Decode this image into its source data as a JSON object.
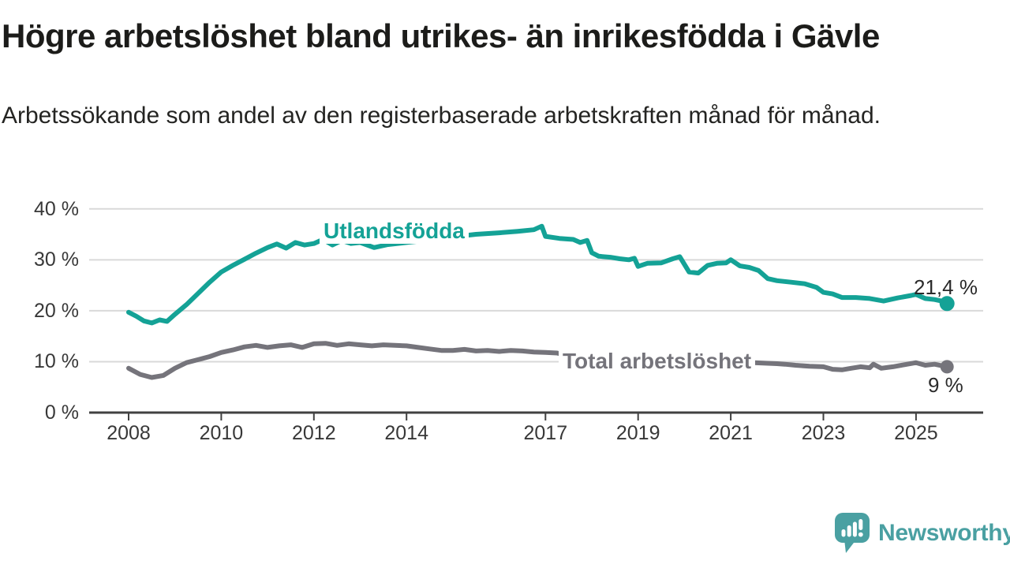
{
  "header": {
    "title": "Högre arbetslöshet bland utrikes- än inrikesfödda i Gävle",
    "subtitle": "Arbetssökande som andel av den registerbaserade arbetskraften månad för månad."
  },
  "branding": {
    "logo_text": "Newsworthy",
    "logo_icon": "speech-bubble-bar-chart-icon",
    "logo_color": "#4aa0a2"
  },
  "colors": {
    "foreign_born_line": "#14a296",
    "total_line": "#75747b",
    "gridline": "#d9d9d9",
    "axis": "#414141",
    "text": "#1c1c1a"
  },
  "chart_data": {
    "type": "line",
    "title": "Högre arbetslöshet bland utrikes- än inrikesfödda i Gävle",
    "subtitle": "Arbetssökande som andel av den registerbaserade arbetskraften månad för månad.",
    "xlabel": "",
    "ylabel": "",
    "grid": true,
    "legend_position": "inline-labels",
    "xlim": [
      2007.2,
      2026.4
    ],
    "ylim": [
      0,
      42
    ],
    "x_ticks": [
      2008,
      2010,
      2012,
      2014,
      2017,
      2019,
      2021,
      2023,
      2025
    ],
    "y_ticks": [
      {
        "value": 0,
        "label": "0 %"
      },
      {
        "value": 10,
        "label": "10 %"
      },
      {
        "value": 20,
        "label": "20 %"
      },
      {
        "value": 30,
        "label": "30 %"
      },
      {
        "value": 40,
        "label": "40 %"
      }
    ],
    "series": [
      {
        "name": "Utlandsfödda",
        "color": "#14a296",
        "end_label": "21,4 %",
        "end_value": 21.4,
        "points": [
          [
            2008.0,
            19.7
          ],
          [
            2008.17,
            18.9
          ],
          [
            2008.33,
            18.0
          ],
          [
            2008.5,
            17.6
          ],
          [
            2008.67,
            18.2
          ],
          [
            2008.83,
            17.9
          ],
          [
            2009.0,
            19.3
          ],
          [
            2009.25,
            21.2
          ],
          [
            2009.5,
            23.4
          ],
          [
            2009.75,
            25.6
          ],
          [
            2010.0,
            27.6
          ],
          [
            2010.25,
            28.9
          ],
          [
            2010.5,
            30.1
          ],
          [
            2010.75,
            31.3
          ],
          [
            2011.0,
            32.4
          ],
          [
            2011.2,
            33.1
          ],
          [
            2011.4,
            32.3
          ],
          [
            2011.6,
            33.4
          ],
          [
            2011.8,
            32.9
          ],
          [
            2012.0,
            33.2
          ],
          [
            2012.2,
            34.0
          ],
          [
            2012.4,
            32.9
          ],
          [
            2012.6,
            33.8
          ],
          [
            2012.8,
            33.2
          ],
          [
            2013.0,
            33.4
          ],
          [
            2013.3,
            32.4
          ],
          [
            2013.6,
            33.0
          ],
          [
            2014.0,
            33.4
          ],
          [
            2014.5,
            33.9
          ],
          [
            2015.0,
            34.5
          ],
          [
            2015.5,
            35.0
          ],
          [
            2016.0,
            35.3
          ],
          [
            2016.4,
            35.6
          ],
          [
            2016.75,
            35.9
          ],
          [
            2016.92,
            36.6
          ],
          [
            2017.0,
            34.6
          ],
          [
            2017.3,
            34.2
          ],
          [
            2017.6,
            34.0
          ],
          [
            2017.75,
            33.4
          ],
          [
            2017.9,
            33.8
          ],
          [
            2018.0,
            31.4
          ],
          [
            2018.15,
            30.7
          ],
          [
            2018.4,
            30.5
          ],
          [
            2018.6,
            30.2
          ],
          [
            2018.8,
            30.0
          ],
          [
            2018.92,
            30.3
          ],
          [
            2019.0,
            28.7
          ],
          [
            2019.2,
            29.3
          ],
          [
            2019.5,
            29.4
          ],
          [
            2019.75,
            30.2
          ],
          [
            2019.9,
            30.6
          ],
          [
            2020.1,
            27.6
          ],
          [
            2020.3,
            27.4
          ],
          [
            2020.5,
            28.9
          ],
          [
            2020.7,
            29.3
          ],
          [
            2020.9,
            29.4
          ],
          [
            2021.0,
            30.0
          ],
          [
            2021.2,
            28.8
          ],
          [
            2021.4,
            28.5
          ],
          [
            2021.6,
            27.9
          ],
          [
            2021.8,
            26.3
          ],
          [
            2022.0,
            25.9
          ],
          [
            2022.3,
            25.6
          ],
          [
            2022.6,
            25.3
          ],
          [
            2022.85,
            24.6
          ],
          [
            2023.0,
            23.6
          ],
          [
            2023.2,
            23.3
          ],
          [
            2023.4,
            22.6
          ],
          [
            2023.7,
            22.6
          ],
          [
            2024.0,
            22.4
          ],
          [
            2024.3,
            21.9
          ],
          [
            2024.6,
            22.5
          ],
          [
            2024.9,
            23.0
          ],
          [
            2025.0,
            23.2
          ],
          [
            2025.2,
            22.4
          ],
          [
            2025.4,
            22.2
          ],
          [
            2025.55,
            21.9
          ],
          [
            2025.67,
            21.4
          ]
        ]
      },
      {
        "name": "Total arbetslöshet",
        "color": "#75747b",
        "end_label": "9 %",
        "end_value": 9.0,
        "points": [
          [
            2008.0,
            8.7
          ],
          [
            2008.25,
            7.5
          ],
          [
            2008.5,
            6.9
          ],
          [
            2008.75,
            7.3
          ],
          [
            2009.0,
            8.7
          ],
          [
            2009.25,
            9.8
          ],
          [
            2009.5,
            10.4
          ],
          [
            2009.75,
            11.0
          ],
          [
            2010.0,
            11.8
          ],
          [
            2010.25,
            12.3
          ],
          [
            2010.5,
            12.9
          ],
          [
            2010.75,
            13.2
          ],
          [
            2011.0,
            12.8
          ],
          [
            2011.25,
            13.1
          ],
          [
            2011.5,
            13.3
          ],
          [
            2011.75,
            12.8
          ],
          [
            2012.0,
            13.5
          ],
          [
            2012.25,
            13.6
          ],
          [
            2012.5,
            13.2
          ],
          [
            2012.75,
            13.5
          ],
          [
            2013.0,
            13.3
          ],
          [
            2013.25,
            13.1
          ],
          [
            2013.5,
            13.3
          ],
          [
            2013.75,
            13.2
          ],
          [
            2014.0,
            13.1
          ],
          [
            2014.25,
            12.8
          ],
          [
            2014.5,
            12.5
          ],
          [
            2014.75,
            12.2
          ],
          [
            2015.0,
            12.2
          ],
          [
            2015.25,
            12.4
          ],
          [
            2015.5,
            12.1
          ],
          [
            2015.75,
            12.2
          ],
          [
            2016.0,
            12.0
          ],
          [
            2016.25,
            12.2
          ],
          [
            2016.5,
            12.1
          ],
          [
            2016.75,
            11.9
          ],
          [
            2017.0,
            11.8
          ],
          [
            2017.25,
            11.7
          ],
          [
            2017.5,
            11.1
          ],
          [
            2017.75,
            11.3
          ],
          [
            2018.0,
            10.8
          ],
          [
            2018.5,
            10.5
          ],
          [
            2019.0,
            10.3
          ],
          [
            2019.5,
            10.1
          ],
          [
            2020.0,
            10.0
          ],
          [
            2020.5,
            10.2
          ],
          [
            2021.0,
            10.1
          ],
          [
            2021.5,
            9.8
          ],
          [
            2022.0,
            9.6
          ],
          [
            2022.17,
            9.5
          ],
          [
            2022.4,
            9.3
          ],
          [
            2022.7,
            9.1
          ],
          [
            2023.0,
            9.0
          ],
          [
            2023.2,
            8.5
          ],
          [
            2023.4,
            8.4
          ],
          [
            2023.6,
            8.7
          ],
          [
            2023.8,
            9.0
          ],
          [
            2024.0,
            8.8
          ],
          [
            2024.08,
            9.5
          ],
          [
            2024.25,
            8.7
          ],
          [
            2024.5,
            9.0
          ],
          [
            2024.75,
            9.4
          ],
          [
            2025.0,
            9.8
          ],
          [
            2025.2,
            9.3
          ],
          [
            2025.4,
            9.5
          ],
          [
            2025.67,
            9.0
          ]
        ]
      }
    ]
  }
}
